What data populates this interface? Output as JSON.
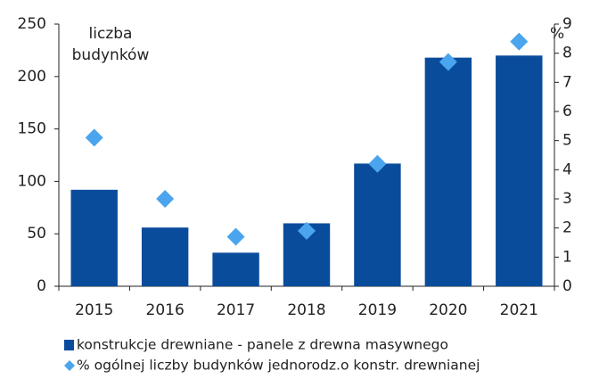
{
  "chart_data": {
    "type": "bar",
    "y_label": "liczba budynków",
    "y2_label": "%",
    "categories": [
      "2015",
      "2016",
      "2017",
      "2018",
      "2019",
      "2020",
      "2021"
    ],
    "series": [
      {
        "name": "konstrukcje drewniane - panele z drewna masywnego",
        "type": "bar",
        "color": "#0a4c9c",
        "values": [
          92,
          56,
          32,
          60,
          117,
          218,
          220
        ]
      },
      {
        "name": "% ogólnej liczby budynków jednorodz.o konstr. drewnianej",
        "type": "scatter",
        "axis": "y2",
        "color": "#4aa5ee",
        "values": [
          5.1,
          3.0,
          1.7,
          1.9,
          4.2,
          7.7,
          8.4
        ]
      }
    ],
    "ylim": [
      0,
      250
    ],
    "yticks": [
      0,
      50,
      100,
      150,
      200,
      250
    ],
    "y2lim": [
      0,
      9
    ],
    "y2ticks": [
      0,
      1,
      2,
      3,
      4,
      5,
      6,
      7,
      8,
      9
    ],
    "grid": false
  }
}
